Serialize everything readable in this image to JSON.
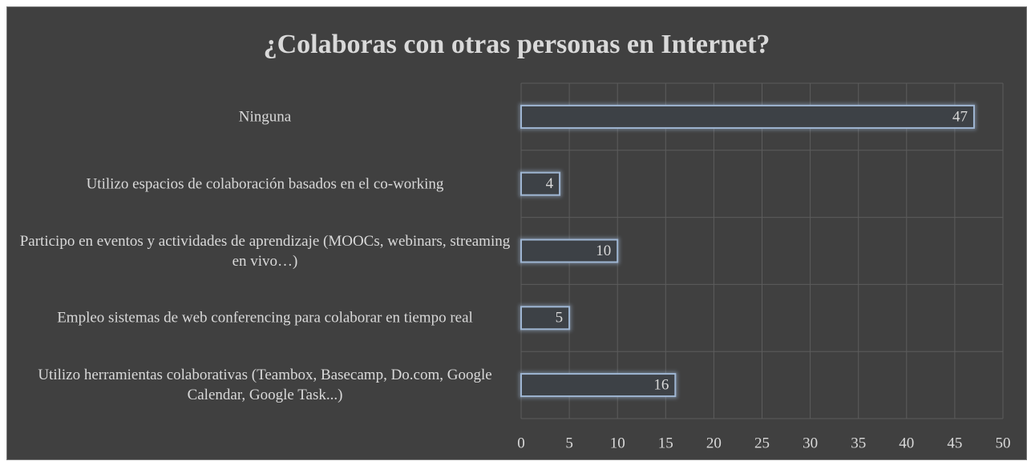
{
  "chart_data": {
    "type": "bar",
    "orientation": "horizontal",
    "title": "¿Colaboras con otras personas en Internet?",
    "categories": [
      "Ninguna",
      "Utilizo espacios de colaboración basados en el co-working",
      "Participo en eventos y actividades de aprendizaje (MOOCs, webinars, streaming en vivo…)",
      "Empleo sistemas de web conferencing para colaborar en tiempo real",
      "Utilizo herramientas colaborativas (Teambox, Basecamp, Do.com, Google Calendar, Google Task...)"
    ],
    "values": [
      47,
      4,
      10,
      5,
      16
    ],
    "color": "#3d4146",
    "outline": "#9fb6d3",
    "xlim": [
      0,
      50
    ],
    "xticks": [
      0,
      5,
      10,
      15,
      20,
      25,
      30,
      35,
      40,
      45,
      50
    ],
    "grid": true
  }
}
